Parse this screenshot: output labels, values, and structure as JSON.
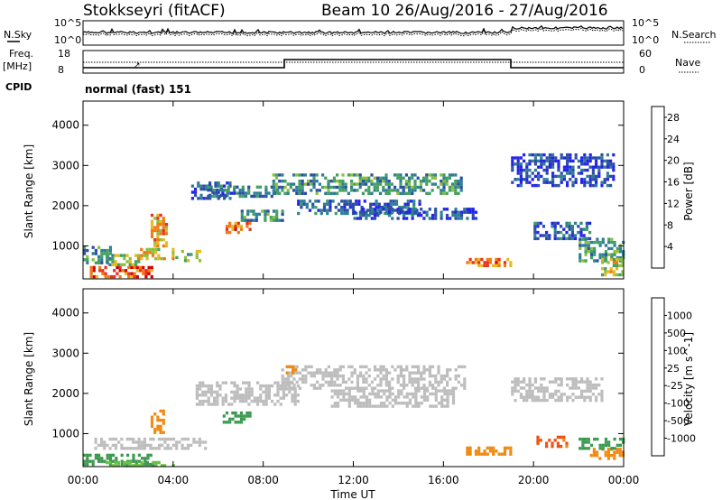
{
  "header": {
    "station": "Stokkseyri (fitACF)",
    "beam_dates": "Beam 10  26/Aug/2016 - 27/Aug/2016"
  },
  "ancillary": {
    "nsky_label": "N.Sky",
    "nsearch_label": "N.Search",
    "noise_ticks": [
      "10^5",
      "10^0"
    ],
    "freq_label_1": "Freq.",
    "freq_label_2": "[MHz]",
    "freq_ticks": [
      "18",
      "8"
    ],
    "nave_label": "Nave",
    "nave_ticks": [
      "60",
      "0"
    ],
    "cpid_label": "CPID",
    "cpid_value": "normal (fast) 151"
  },
  "axes": {
    "x_ticks": [
      "00:00",
      "04:00",
      "08:00",
      "12:00",
      "16:00",
      "20:00",
      "00:00"
    ],
    "x_tick_hours": [
      0,
      4,
      8,
      12,
      16,
      20,
      24
    ],
    "xlabel": "Time UT",
    "y_ticks": [
      "1000",
      "2000",
      "3000",
      "4000"
    ],
    "y_tick_values": [
      1000,
      2000,
      3000,
      4000
    ],
    "ylabel": "Slant Range [km]"
  },
  "colors": {
    "power_scale": [
      "#2424e8",
      "#2c4fa3",
      "#2f7e96",
      "#43a060",
      "#8cc040",
      "#e8b820",
      "#f07a10",
      "#e83020",
      "#d40000"
    ],
    "velocity_scale": [
      "#e01a10",
      "#f0500f",
      "#f08a12",
      "#f5b830",
      "#c8c8c8",
      "#c8c8c8",
      "#68c040",
      "#3c9a50",
      "#2f6aa8",
      "#2433b8"
    ],
    "ground_scatter": "#bdbdbd"
  },
  "chart_data": [
    {
      "type": "heatmap",
      "title": "",
      "xlabel": "Time UT",
      "ylabel": "Slant Range [km]",
      "xlim": [
        0,
        24
      ],
      "ylim": [
        180,
        4600
      ],
      "colorbar": {
        "label": "Power [dB]",
        "ticks": [
          4,
          8,
          12,
          16,
          20,
          24,
          28
        ],
        "tick_labels": [
          "4",
          "8",
          "12",
          "16",
          "20",
          "24",
          "28"
        ],
        "range": [
          0,
          30
        ]
      },
      "scatter_regions": [
        {
          "t": [
            0.0,
            1.2
          ],
          "r": [
            600,
            1000
          ],
          "v": 10
        },
        {
          "t": [
            0.3,
            3.0
          ],
          "r": [
            200,
            500
          ],
          "v": 24
        },
        {
          "t": [
            1.0,
            2.5
          ],
          "r": [
            500,
            800
          ],
          "v": 14
        },
        {
          "t": [
            2.4,
            4.0
          ],
          "r": [
            650,
            950
          ],
          "v": 18
        },
        {
          "t": [
            3.0,
            3.7
          ],
          "r": [
            1000,
            1800
          ],
          "v": 20
        },
        {
          "t": [
            4.1,
            5.2
          ],
          "r": [
            650,
            900
          ],
          "v": 14
        },
        {
          "t": [
            4.8,
            6.5
          ],
          "r": [
            2200,
            2600
          ],
          "v": 6
        },
        {
          "t": [
            6.2,
            7.4
          ],
          "r": [
            1300,
            1600
          ],
          "v": 22
        },
        {
          "t": [
            7.0,
            8.8
          ],
          "r": [
            1600,
            1900
          ],
          "v": 10
        },
        {
          "t": [
            5.5,
            8.7
          ],
          "r": [
            2200,
            2500
          ],
          "v": 8
        },
        {
          "t": [
            8.4,
            16.8
          ],
          "r": [
            2300,
            2800
          ],
          "v": 10
        },
        {
          "t": [
            9.5,
            15.0
          ],
          "r": [
            1800,
            2150
          ],
          "v": 6
        },
        {
          "t": [
            12.0,
            17.5
          ],
          "r": [
            1650,
            1950
          ],
          "v": 5
        },
        {
          "t": [
            17.0,
            19.0
          ],
          "r": [
            480,
            700
          ],
          "v": 22
        },
        {
          "t": [
            19.0,
            23.5
          ],
          "r": [
            2500,
            3300
          ],
          "v": 4
        },
        {
          "t": [
            20.0,
            22.5
          ],
          "r": [
            1200,
            1600
          ],
          "v": 6
        },
        {
          "t": [
            22.0,
            24.0
          ],
          "r": [
            600,
            1200
          ],
          "v": 10
        },
        {
          "t": [
            23.0,
            24.0
          ],
          "r": [
            300,
            700
          ],
          "v": 16
        }
      ]
    },
    {
      "type": "heatmap",
      "title": "",
      "xlabel": "Time UT",
      "ylabel": "Slant Range [km]",
      "xlim": [
        0,
        24
      ],
      "ylim": [
        180,
        4600
      ],
      "colorbar": {
        "label": "Velocity [m s^-1]",
        "ticks": [
          1000,
          500,
          100,
          25,
          -25,
          -100,
          -500,
          -1000
        ],
        "tick_labels": [
          "1000",
          "500",
          "100",
          "25",
          "-25",
          "-100",
          "-500",
          "-1000"
        ],
        "range": [
          -1250,
          1250
        ]
      },
      "ground_scatter_regions": [
        {
          "t": [
            0.5,
            5.5
          ],
          "r": [
            600,
            900
          ]
        },
        {
          "t": [
            5.0,
            9.5
          ],
          "r": [
            1700,
            2300
          ]
        },
        {
          "t": [
            8.8,
            17.0
          ],
          "r": [
            2100,
            2700
          ]
        },
        {
          "t": [
            11.0,
            16.5
          ],
          "r": [
            1700,
            2100
          ]
        },
        {
          "t": [
            19.0,
            23.0
          ],
          "r": [
            1800,
            2400
          ]
        }
      ],
      "scatter_regions": [
        {
          "t": [
            0.0,
            3.0
          ],
          "r": [
            200,
            500
          ],
          "v": 200
        },
        {
          "t": [
            1.0,
            4.0
          ],
          "r": [
            200,
            320
          ],
          "v": 80
        },
        {
          "t": [
            3.0,
            3.6
          ],
          "r": [
            1000,
            1600
          ],
          "v": -200
        },
        {
          "t": [
            6.2,
            7.4
          ],
          "r": [
            1250,
            1550
          ],
          "v": 300
        },
        {
          "t": [
            9.0,
            9.5
          ],
          "r": [
            2500,
            2700
          ],
          "v": -150
        },
        {
          "t": [
            17.0,
            19.0
          ],
          "r": [
            480,
            680
          ],
          "v": -300
        },
        {
          "t": [
            20.0,
            21.5
          ],
          "r": [
            700,
            950
          ],
          "v": -700
        },
        {
          "t": [
            22.5,
            24.0
          ],
          "r": [
            350,
            650
          ],
          "v": -300
        },
        {
          "t": [
            22.0,
            24.0
          ],
          "r": [
            600,
            900
          ],
          "v": 300
        }
      ]
    }
  ]
}
